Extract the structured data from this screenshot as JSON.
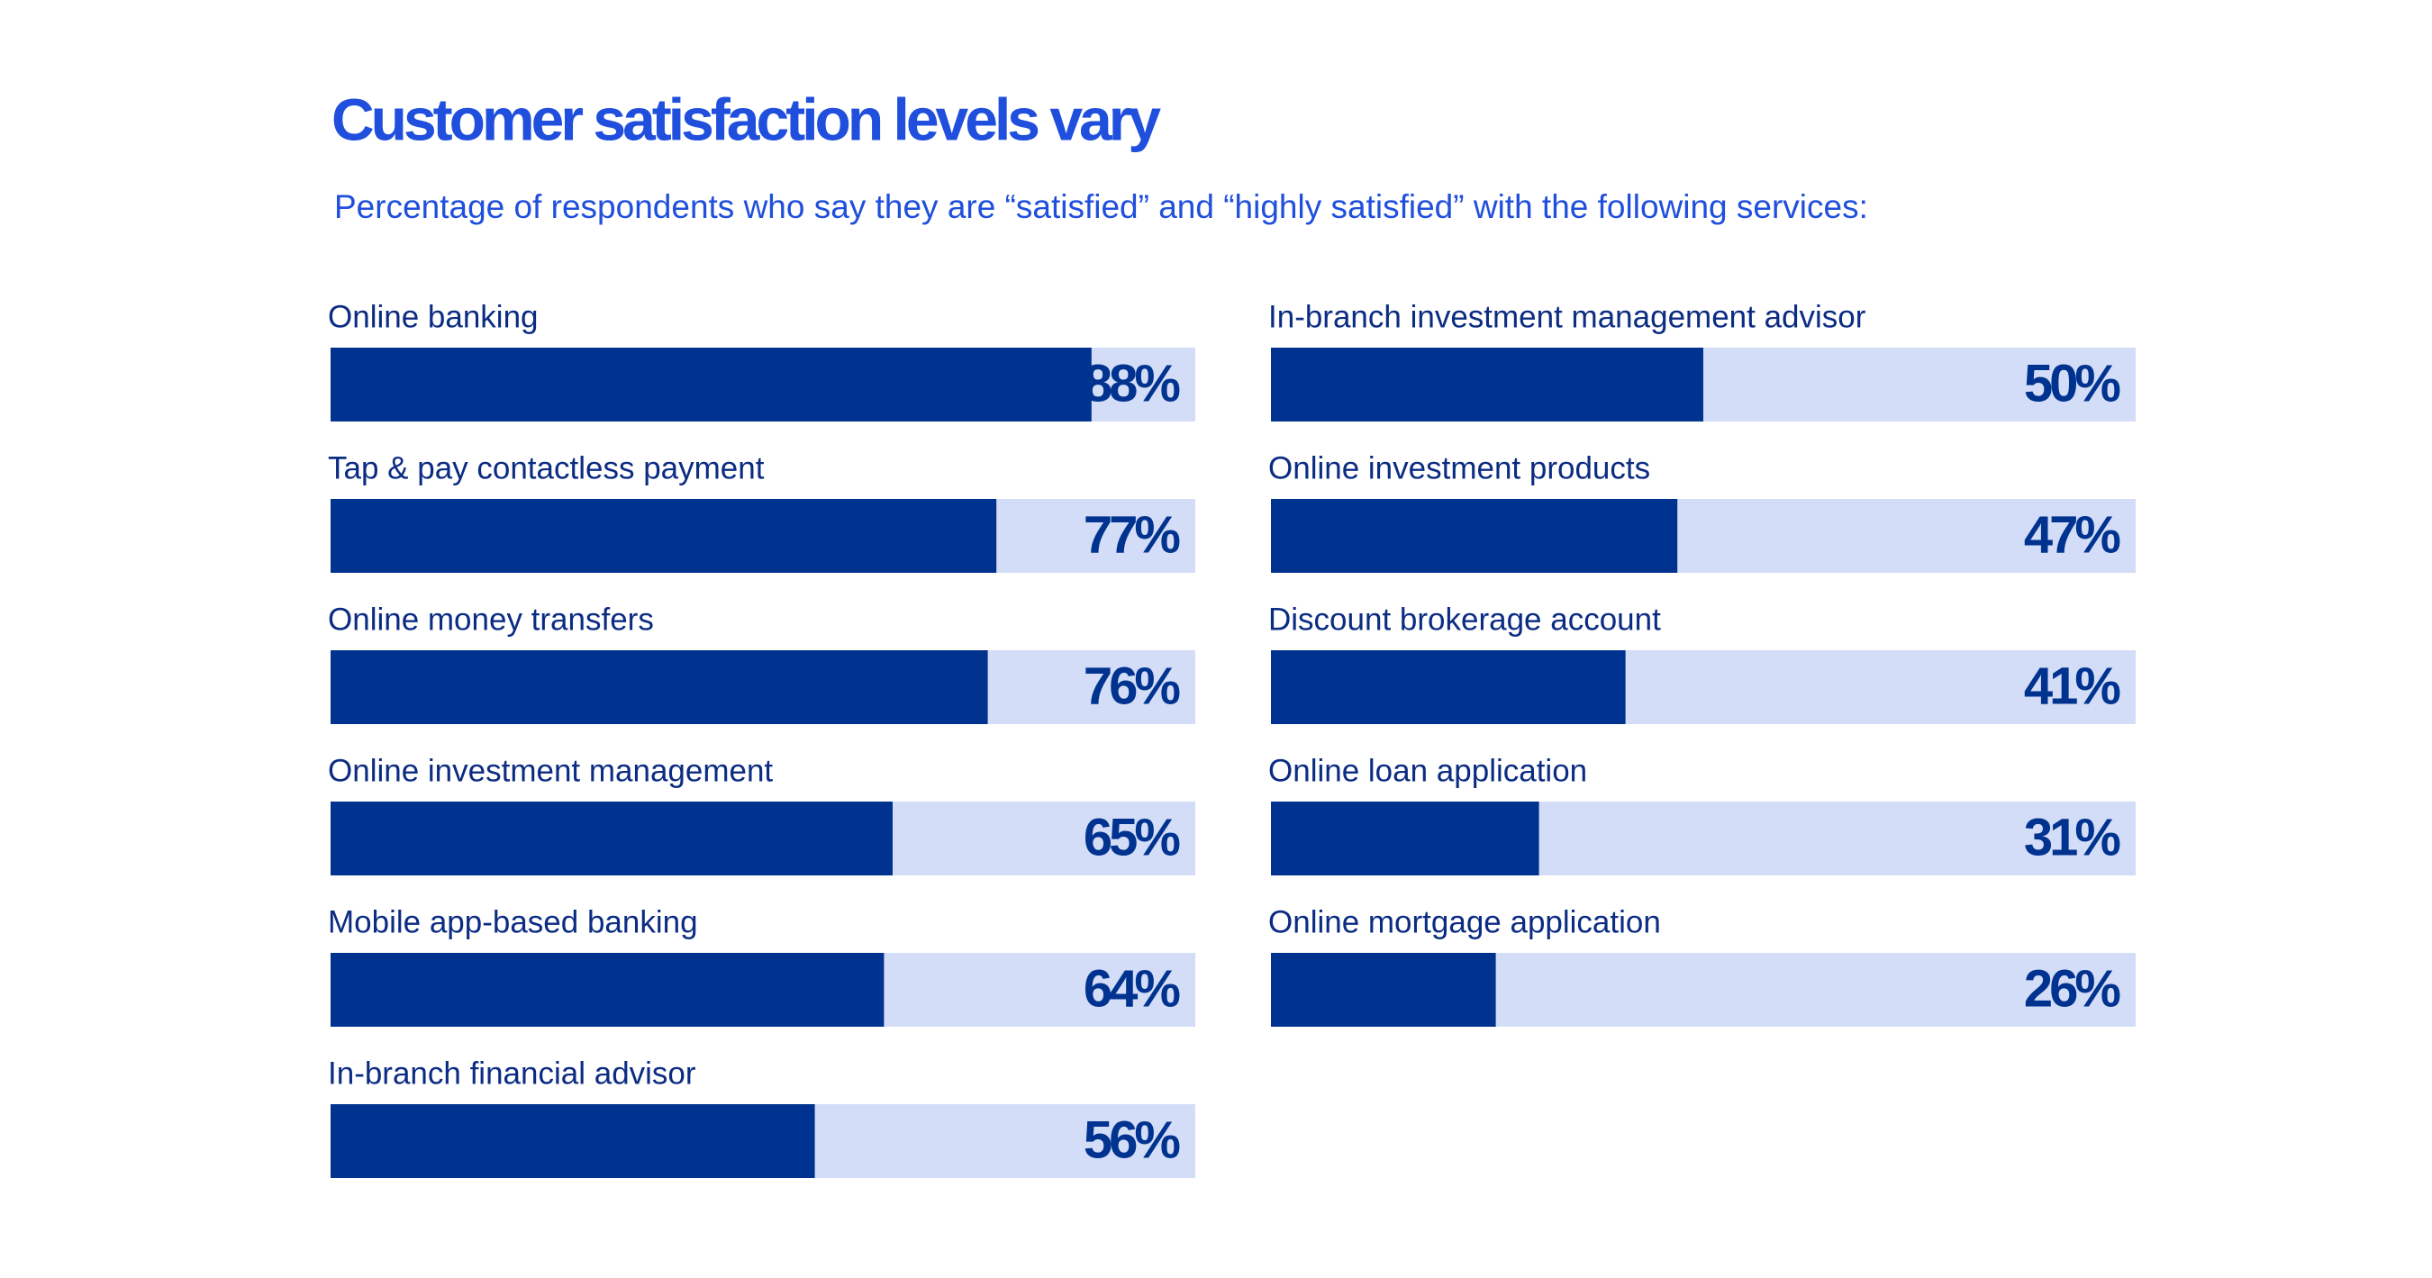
{
  "chart_data": {
    "type": "progress-bar",
    "title": "Customer satisfaction levels vary",
    "subtitle": "Percentage of respondents who say they are “satisfied” and “highly satisfied” with the following services:",
    "categories": [
      "Online banking",
      "Tap & pay contactless payment",
      "Online money transfers",
      "Online investment management",
      "Mobile app-based banking",
      "In-branch financial advisor",
      "In-branch investment management advisor",
      "Online investment products",
      "Discount brokerage account",
      "Online loan application",
      "Online mortgage application"
    ],
    "values": [
      88,
      77,
      76,
      65,
      64,
      56,
      50,
      47,
      41,
      31,
      26
    ],
    "value_labels": [
      "88%",
      "77%",
      "76%",
      "65%",
      "64%",
      "56%",
      "50%",
      "47%",
      "41%",
      "31%",
      "26%"
    ],
    "xlim": [
      0,
      100
    ],
    "color": "#00338f",
    "track_color": "#d4ddf7"
  }
}
